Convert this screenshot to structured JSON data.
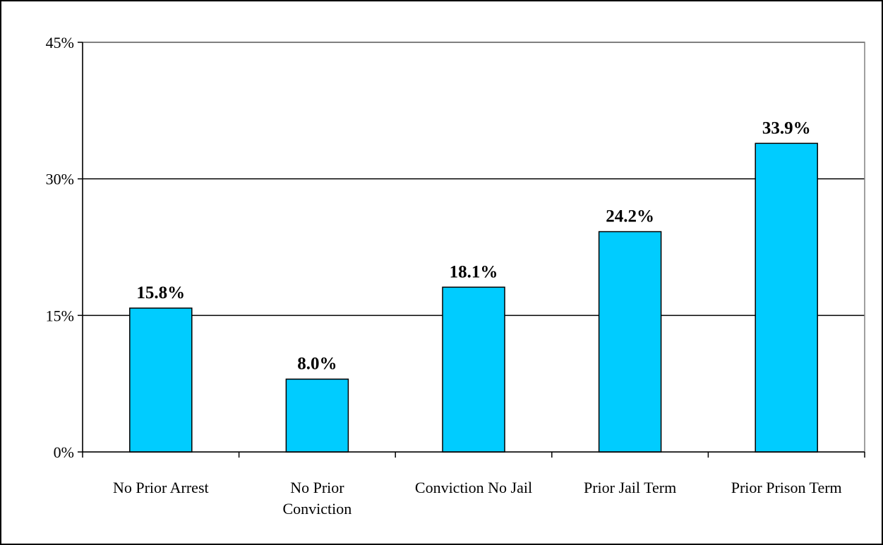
{
  "chart_data": {
    "type": "bar",
    "title": "",
    "xlabel": "",
    "ylabel": "",
    "categories": [
      [
        "No Prior Arrest"
      ],
      [
        "No Prior",
        "Conviction"
      ],
      [
        "Conviction  No Jail"
      ],
      [
        "Prior Jail Term"
      ],
      [
        "Prior Prison Term"
      ]
    ],
    "values": [
      15.8,
      8.0,
      18.1,
      24.2,
      33.9
    ],
    "data_labels": [
      "15.8%",
      "8.0%",
      "18.1%",
      "24.2%",
      "33.9%"
    ],
    "ylim": [
      0,
      45
    ],
    "yticks": [
      0,
      15,
      30,
      45
    ],
    "ytick_labels": [
      "0%",
      "15%",
      "30%",
      "45%"
    ],
    "grid": true,
    "legend": "none",
    "bar_color": "#00CCFF",
    "bar_edge_color": "#000000",
    "gridline_color": "#000000",
    "plot_border_color": "#808080"
  }
}
